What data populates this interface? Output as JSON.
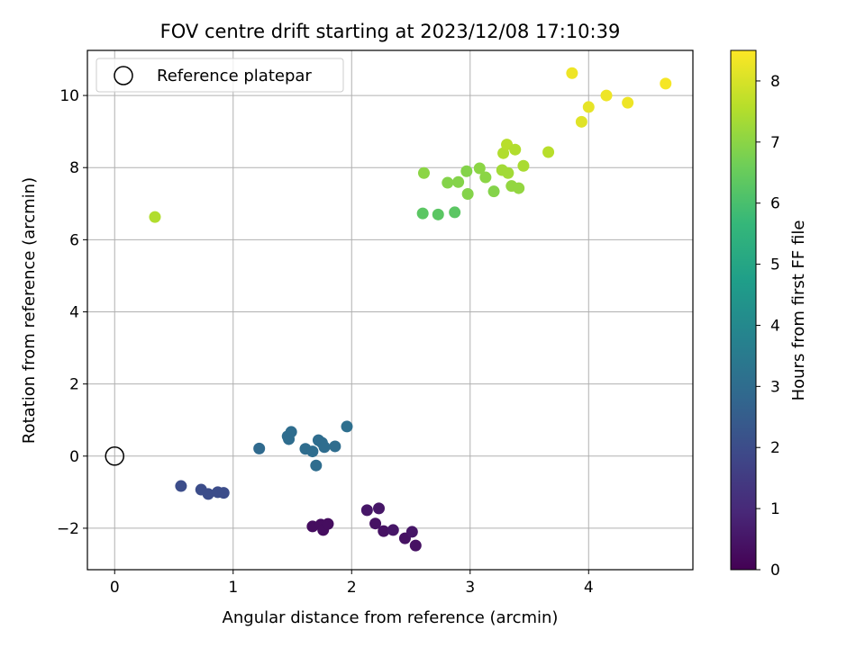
{
  "chart_data": {
    "type": "scatter",
    "title": "FOV centre drift starting at 2023/12/08 17:10:39",
    "xlabel": "Angular distance from reference (arcmin)",
    "ylabel": "Rotation from reference (arcmin)",
    "xlim": [
      -0.23,
      4.88
    ],
    "ylim": [
      -3.15,
      11.25
    ],
    "xticks": [
      0,
      1,
      2,
      3,
      4
    ],
    "yticks": [
      -2,
      0,
      2,
      4,
      6,
      8,
      10
    ],
    "xtick_labels": [
      "0",
      "1",
      "2",
      "3",
      "4"
    ],
    "ytick_labels": [
      "−2",
      "0",
      "2",
      "4",
      "6",
      "8",
      "10"
    ],
    "grid": true,
    "legend": {
      "position": "top-left",
      "label": "Reference platepar"
    },
    "reference_point": {
      "x": 0,
      "y": 0
    },
    "colorbar": {
      "label": "Hours from first FF file",
      "min": 0,
      "max": 8.5,
      "ticks": [
        0,
        1,
        2,
        3,
        4,
        5,
        6,
        7,
        8
      ],
      "tick_labels": [
        "0",
        "1",
        "2",
        "3",
        "4",
        "5",
        "6",
        "7",
        "8"
      ],
      "colormap": [
        "#440154",
        "#482878",
        "#3e4989",
        "#31688e",
        "#26828e",
        "#1f9e89",
        "#35b779",
        "#6ece58",
        "#b5de2b",
        "#fde725"
      ]
    },
    "points": [
      {
        "x": 1.67,
        "y": -1.95,
        "t": 0.3
      },
      {
        "x": 1.74,
        "y": -1.9,
        "t": 0.3
      },
      {
        "x": 1.76,
        "y": -2.05,
        "t": 0.3
      },
      {
        "x": 1.8,
        "y": -1.88,
        "t": 0.3
      },
      {
        "x": 2.13,
        "y": -1.5,
        "t": 0.5
      },
      {
        "x": 2.23,
        "y": -1.45,
        "t": 0.5
      },
      {
        "x": 2.2,
        "y": -1.87,
        "t": 0.4
      },
      {
        "x": 2.27,
        "y": -2.08,
        "t": 0.4
      },
      {
        "x": 2.35,
        "y": -2.05,
        "t": 0.5
      },
      {
        "x": 2.45,
        "y": -2.28,
        "t": 0.4
      },
      {
        "x": 2.51,
        "y": -2.1,
        "t": 0.5
      },
      {
        "x": 2.54,
        "y": -2.48,
        "t": 0.4
      },
      {
        "x": 0.56,
        "y": -0.83,
        "t": 2.0
      },
      {
        "x": 0.73,
        "y": -0.93,
        "t": 2.0
      },
      {
        "x": 0.79,
        "y": -1.05,
        "t": 2.0
      },
      {
        "x": 0.87,
        "y": -1.0,
        "t": 2.0
      },
      {
        "x": 0.92,
        "y": -1.02,
        "t": 2.0
      },
      {
        "x": 1.22,
        "y": 0.21,
        "t": 2.9
      },
      {
        "x": 1.46,
        "y": 0.55,
        "t": 3.0
      },
      {
        "x": 1.47,
        "y": 0.47,
        "t": 3.0
      },
      {
        "x": 1.49,
        "y": 0.67,
        "t": 3.0
      },
      {
        "x": 1.61,
        "y": 0.2,
        "t": 3.0
      },
      {
        "x": 1.67,
        "y": 0.13,
        "t": 3.0
      },
      {
        "x": 1.7,
        "y": -0.26,
        "t": 3.0
      },
      {
        "x": 1.72,
        "y": 0.44,
        "t": 3.0
      },
      {
        "x": 1.75,
        "y": 0.37,
        "t": 3.0
      },
      {
        "x": 1.77,
        "y": 0.25,
        "t": 3.0
      },
      {
        "x": 1.86,
        "y": 0.27,
        "t": 3.0
      },
      {
        "x": 1.96,
        "y": 0.82,
        "t": 3.1
      },
      {
        "x": 0.34,
        "y": 6.63,
        "t": 7.5
      },
      {
        "x": 2.6,
        "y": 6.73,
        "t": 6.3
      },
      {
        "x": 2.73,
        "y": 6.7,
        "t": 6.3
      },
      {
        "x": 2.87,
        "y": 6.76,
        "t": 6.3
      },
      {
        "x": 2.61,
        "y": 7.85,
        "t": 7.0
      },
      {
        "x": 2.81,
        "y": 7.58,
        "t": 6.9
      },
      {
        "x": 2.9,
        "y": 7.6,
        "t": 6.9
      },
      {
        "x": 2.97,
        "y": 7.9,
        "t": 6.9
      },
      {
        "x": 2.98,
        "y": 7.27,
        "t": 6.9
      },
      {
        "x": 3.08,
        "y": 7.98,
        "t": 7.0
      },
      {
        "x": 3.13,
        "y": 7.73,
        "t": 7.0
      },
      {
        "x": 3.2,
        "y": 7.34,
        "t": 6.9
      },
      {
        "x": 3.27,
        "y": 7.93,
        "t": 7.3
      },
      {
        "x": 3.28,
        "y": 8.4,
        "t": 7.5
      },
      {
        "x": 3.31,
        "y": 8.64,
        "t": 7.6
      },
      {
        "x": 3.32,
        "y": 7.85,
        "t": 7.3
      },
      {
        "x": 3.35,
        "y": 7.49,
        "t": 7.1
      },
      {
        "x": 3.38,
        "y": 8.5,
        "t": 7.5
      },
      {
        "x": 3.41,
        "y": 7.43,
        "t": 7.1
      },
      {
        "x": 3.45,
        "y": 8.05,
        "t": 7.4
      },
      {
        "x": 3.66,
        "y": 8.43,
        "t": 7.6
      },
      {
        "x": 3.86,
        "y": 10.62,
        "t": 8.3
      },
      {
        "x": 3.94,
        "y": 9.27,
        "t": 8.1
      },
      {
        "x": 4.0,
        "y": 9.68,
        "t": 8.2
      },
      {
        "x": 4.15,
        "y": 10.0,
        "t": 8.3
      },
      {
        "x": 4.33,
        "y": 9.8,
        "t": 8.3
      },
      {
        "x": 4.65,
        "y": 10.33,
        "t": 8.4
      }
    ]
  }
}
